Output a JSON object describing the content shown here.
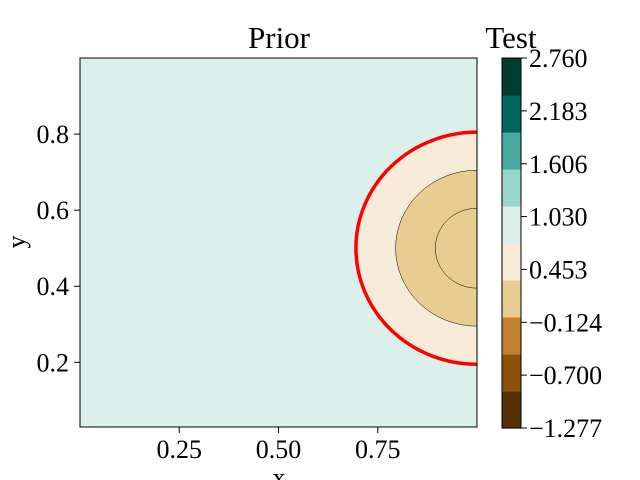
{
  "chart_data": {
    "type": "contour",
    "title": "Prior",
    "secondary_title": "Test",
    "xlabel": "x",
    "ylabel": "y",
    "xlim": [
      0.0,
      1.0
    ],
    "ylim": [
      0.03,
      1.0
    ],
    "xticks": [
      "0.25",
      "0.50",
      "0.75"
    ],
    "xtick_values": [
      0.25,
      0.5,
      0.75
    ],
    "yticks": [
      "0.2",
      "0.4",
      "0.6",
      "0.8"
    ],
    "ytick_values": [
      0.2,
      0.4,
      0.6,
      0.8
    ],
    "background_fill": "#dbefeb",
    "colormap": "BrBG",
    "colorbar": {
      "ticks": [
        "−1.277",
        "−0.700",
        "−0.124",
        "0.453",
        "1.030",
        "1.606",
        "2.183",
        "2.760"
      ],
      "values": [
        -1.277,
        -0.7,
        -0.124,
        0.453,
        1.03,
        1.606,
        2.183,
        2.76
      ],
      "colors": [
        "#543005",
        "#8c510a",
        "#bf812d",
        "#e7cd91",
        "#f6ebd8",
        "#dbefeb",
        "#98d6cb",
        "#4aa99e",
        "#01665e",
        "#003c30"
      ]
    },
    "contours": [
      {
        "center": [
          1.0,
          0.5
        ],
        "radius": 0.305,
        "fill": "#f6ebd8",
        "edge": "#ff0000",
        "edge_width": 3.5
      },
      {
        "center": [
          1.0,
          0.5
        ],
        "radius": 0.205,
        "fill": "#e7cd91",
        "edge": "#000000",
        "edge_width": 0.5
      },
      {
        "center": [
          1.0,
          0.5
        ],
        "radius": 0.105,
        "fill": "#e7cd91",
        "edge": "#000000",
        "edge_width": 0.5
      }
    ]
  }
}
